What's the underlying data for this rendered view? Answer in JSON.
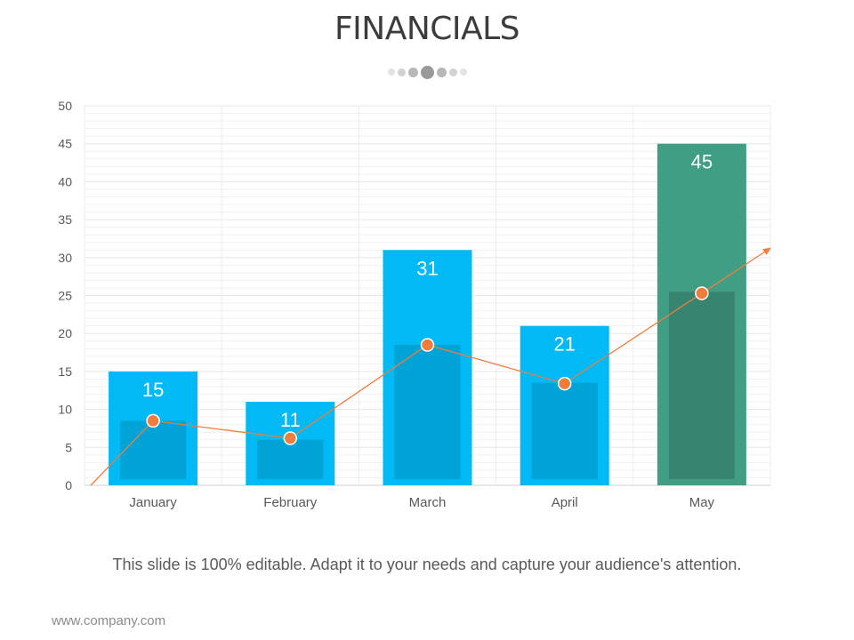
{
  "slide": {
    "title": "FINANCIALS",
    "caption": "This slide is 100% editable. Adapt it to your needs and capture your audience's attention.",
    "footer_url": "www.company.com"
  },
  "colors": {
    "bar_blue": "#00b9f5",
    "bar_blue_inner": "#00a3d6",
    "bar_green": "#3f9e84",
    "bar_green_inner": "#378570",
    "trend_line": "#f07d3c",
    "grid": "#e6e6e6",
    "text": "#595959"
  },
  "chart_data": {
    "type": "bar",
    "categories": [
      "January",
      "February",
      "March",
      "April",
      "May"
    ],
    "series": [
      {
        "values": [
          15,
          11,
          31,
          21,
          45
        ]
      },
      {
        "values": [
          8.5,
          6,
          18.5,
          13.5,
          25.5
        ]
      }
    ],
    "trend_values": [
      8.5,
      6.2,
      18.5,
      13.4,
      25.3
    ],
    "data_labels": [
      "15",
      "11",
      "31",
      "21",
      "45"
    ],
    "highlight_category": "May",
    "yticks": [
      "0",
      "5",
      "10",
      "15",
      "20",
      "25",
      "30",
      "35",
      "40",
      "45",
      "50"
    ],
    "ylim": [
      0,
      50
    ],
    "ytick_step": 5,
    "grid": true,
    "legend": "none"
  }
}
